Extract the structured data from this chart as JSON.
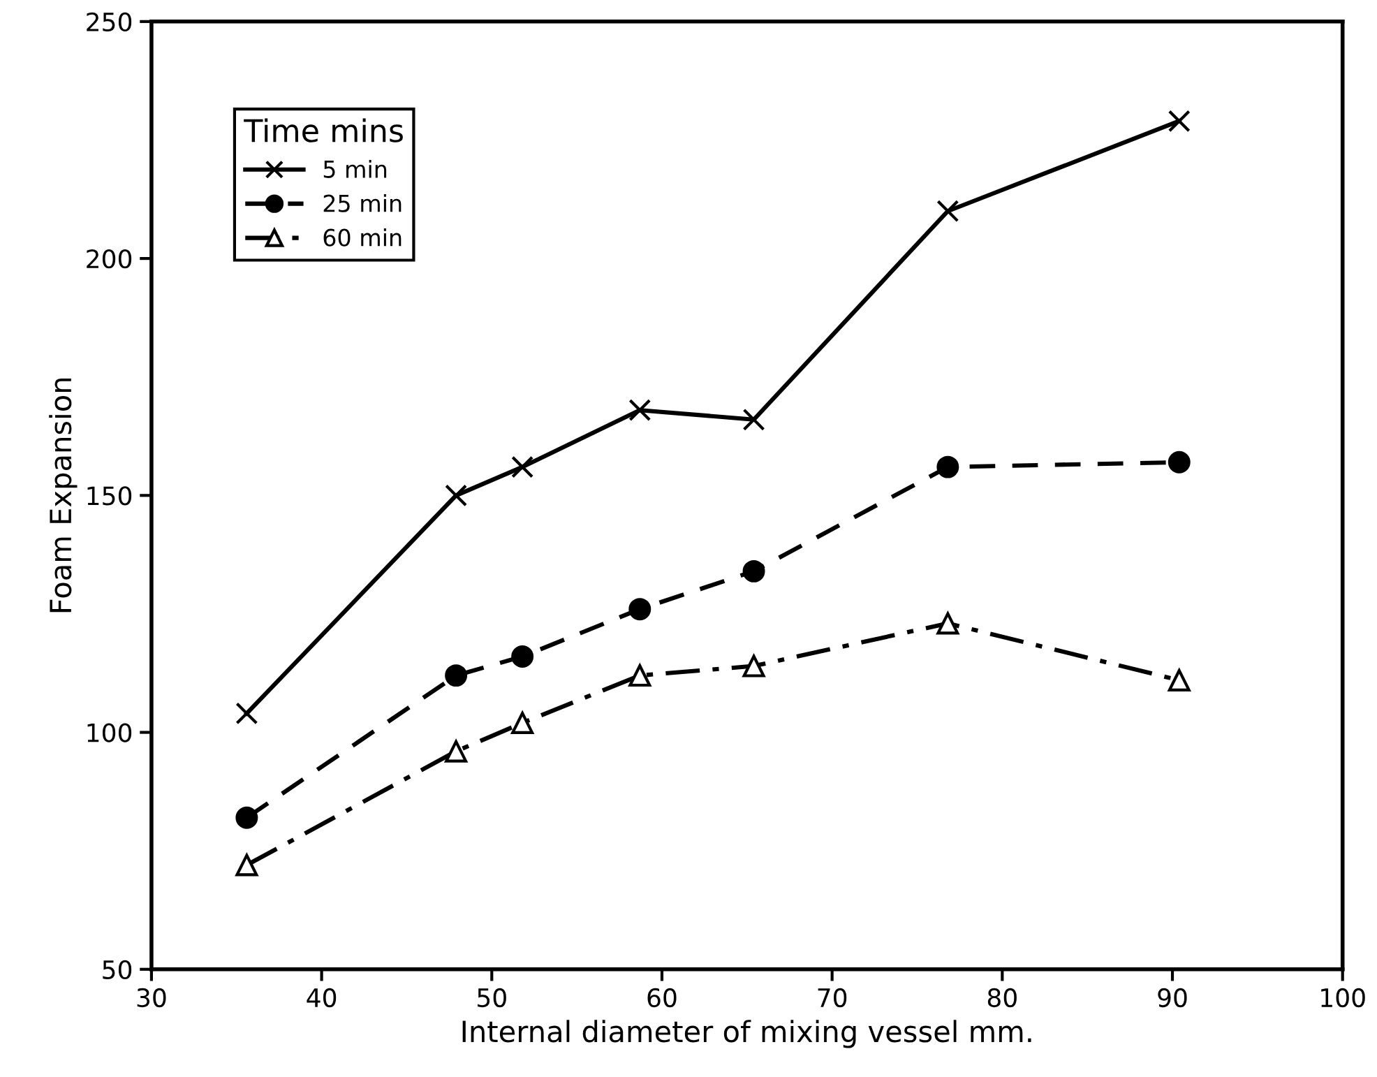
{
  "chart_data": {
    "type": "line",
    "xlabel": "Internal diameter of mixing vessel mm.",
    "ylabel": "Foam Expansion",
    "legend_title": "Time mins",
    "legend": "top left",
    "grid": false,
    "xlim": [
      30,
      100
    ],
    "xticks": [
      30,
      40,
      50,
      60,
      70,
      80,
      90,
      100
    ],
    "ylim": [
      50,
      250
    ],
    "yticks": [
      50,
      100,
      150,
      200,
      250
    ],
    "x": [
      35.6,
      47.9,
      51.8,
      58.7,
      65.4,
      76.8,
      90.4
    ],
    "series": [
      {
        "name": "5 min",
        "color": "#000000",
        "marker": "cross",
        "line_style": "solid",
        "values": [
          104,
          150,
          156,
          168,
          166,
          210,
          229
        ]
      },
      {
        "name": "25 min",
        "color": "#000000",
        "marker": "circle",
        "line_style": "dashed",
        "values": [
          82,
          112,
          116,
          126,
          134,
          156,
          157
        ]
      },
      {
        "name": "60 min",
        "color": "#000000",
        "marker": "triangle",
        "line_style": "dashdot",
        "values": [
          72,
          96,
          102,
          112,
          114,
          123,
          111
        ]
      }
    ]
  }
}
